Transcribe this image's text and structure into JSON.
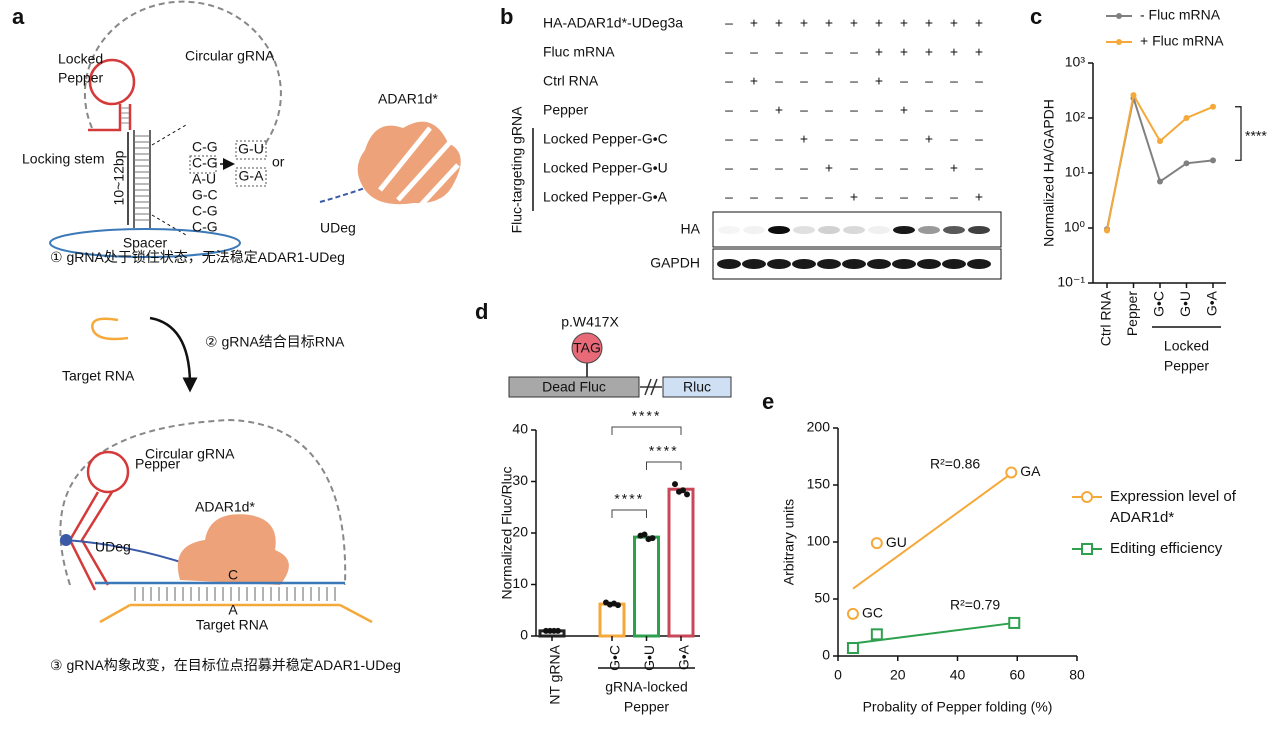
{
  "panel_a": {
    "panel_label": "a",
    "circular_grna": "Circular gRNA",
    "locked_pepper": [
      "Locked",
      "Pepper"
    ],
    "base_pairs": [
      "C-G",
      "C-G",
      "A-U",
      "G-C",
      "C-G",
      "C-G"
    ],
    "alternatives": [
      "G-U",
      "G-A"
    ],
    "or": "or",
    "locking_stem": "Locking stem",
    "stem_length": "10~12bp",
    "spacer": "Spacer",
    "adar": "ADAR1d*",
    "udeg": "UDeg",
    "step1": "① gRNA处于锁住状态，无法稳定ADAR1-UDeg",
    "step2": "② gRNA结合目标RNA",
    "target_rna": "Target RNA",
    "circular_grna_2": "Circular gRNA",
    "pepper": "Pepper",
    "adar_2": "ADAR1d*",
    "udeg_2": "UDeg",
    "edit_c": "C",
    "edit_a": "A",
    "target_rna_2": "Target RNA",
    "step3": "③ gRNA构象改变，在目标位点招募并稳定ADAR1-UDeg"
  },
  "panel_b": {
    "panel_label": "b",
    "rows": [
      {
        "label": "HA-ADAR1d*-UDeg3a",
        "signs": [
          "–",
          "+",
          "+",
          "+",
          "+",
          "+",
          "+",
          "+",
          "+",
          "+",
          "+"
        ]
      },
      {
        "label": "Fluc mRNA",
        "signs": [
          "–",
          "–",
          "–",
          "–",
          "–",
          "–",
          "+",
          "+",
          "+",
          "+",
          "+"
        ]
      },
      {
        "label": "Ctrl RNA",
        "signs": [
          "–",
          "+",
          "–",
          "–",
          "–",
          "–",
          "+",
          "–",
          "–",
          "–",
          "–"
        ]
      },
      {
        "label": "Pepper",
        "signs": [
          "–",
          "–",
          "+",
          "–",
          "–",
          "–",
          "–",
          "+",
          "–",
          "–",
          "–"
        ]
      },
      {
        "label": "Locked Pepper-G•C",
        "signs": [
          "–",
          "–",
          "–",
          "+",
          "–",
          "–",
          "–",
          "–",
          "+",
          "–",
          "–"
        ]
      },
      {
        "label": "Locked Pepper-G•U",
        "signs": [
          "–",
          "–",
          "–",
          "–",
          "+",
          "–",
          "–",
          "–",
          "–",
          "+",
          "–"
        ]
      },
      {
        "label": "Locked Pepper-G•A",
        "signs": [
          "–",
          "–",
          "–",
          "–",
          "–",
          "+",
          "–",
          "–",
          "–",
          "–",
          "+"
        ]
      }
    ],
    "group_label": "Fluc-targeting gRNA",
    "blot_labels": [
      "HA",
      "GAPDH"
    ]
  },
  "chart_data": [
    {
      "type": "line",
      "panel_label": "c",
      "ylabel": "Normalized HA/GAPDH",
      "categories": [
        "Ctrl RNA",
        "Pepper",
        "G•C",
        "G•U",
        "G•A"
      ],
      "group_label": [
        "Locked",
        "Pepper"
      ],
      "log_scale": true,
      "ylim": [
        0.1,
        1000
      ],
      "yticks": [
        {
          "value": 0.1,
          "label": "10⁻¹"
        },
        {
          "value": 1,
          "label": "10⁰"
        },
        {
          "value": 10,
          "label": "10¹"
        },
        {
          "value": 100,
          "label": "10²"
        },
        {
          "value": 1000,
          "label": "10³"
        }
      ],
      "series": [
        {
          "name": "- Fluc mRNA",
          "color": "#808080",
          "values": [
            0.95,
            230,
            7,
            15,
            17
          ]
        },
        {
          "name": "+ Fluc mRNA",
          "color": "#f5a93a",
          "values": [
            0.9,
            260,
            38,
            100,
            160
          ]
        }
      ],
      "annotation": "****"
    },
    {
      "type": "bar",
      "panel_label": "d",
      "construct": {
        "mutation": "p.W417X",
        "codon": "TAG",
        "dead": "Dead Fluc",
        "rluc": "Rluc"
      },
      "ylabel": "Normalized Fluc/Rluc",
      "categories": [
        "NT gRNA",
        "G•C",
        "G•U",
        "G•A"
      ],
      "group_label": [
        "gRNA-locked",
        "Pepper"
      ],
      "values": [
        1,
        6.2,
        19.2,
        28.5
      ],
      "points": [
        [
          1,
          1,
          1,
          1
        ],
        [
          6.5,
          6.1,
          6.3,
          6.0
        ],
        [
          19.5,
          19.7,
          18.8,
          19.0
        ],
        [
          29.5,
          28.0,
          28.3,
          27.5
        ]
      ],
      "colors": [
        "#222222",
        "#f5a93a",
        "#2ca04c",
        "#c8485a"
      ],
      "ylim": [
        0,
        40
      ],
      "yticks": [
        0,
        10,
        20,
        30,
        40
      ],
      "significance": [
        "****",
        "****",
        "****"
      ]
    },
    {
      "type": "scatter",
      "panel_label": "e",
      "xlabel": "Probality of Pepper folding (%)",
      "ylabel": "Arbitrary units",
      "xlim": [
        0,
        80
      ],
      "xticks": [
        0,
        20,
        40,
        60,
        80
      ],
      "ylim": [
        0,
        200
      ],
      "yticks": [
        0,
        50,
        100,
        150,
        200
      ],
      "series": [
        {
          "name": "Expression level of ADAR1d*",
          "color": "#f5a93a",
          "marker": "circle",
          "x": [
            5,
            13,
            58
          ],
          "values": [
            37,
            99,
            161
          ],
          "point_labels": [
            "GC",
            "GU",
            "GA"
          ],
          "fit": {
            "x": [
              5,
              58
            ],
            "values": [
              59,
              160
            ]
          },
          "fit_label": "R²=0.86"
        },
        {
          "name": "Editing efficiency",
          "color": "#2ca04c",
          "marker": "square",
          "x": [
            5,
            13,
            59
          ],
          "values": [
            7,
            19,
            29
          ],
          "fit": {
            "x": [
              5,
              59
            ],
            "values": [
              11,
              29
            ]
          },
          "fit_label": "R²=0.79"
        }
      ]
    }
  ]
}
